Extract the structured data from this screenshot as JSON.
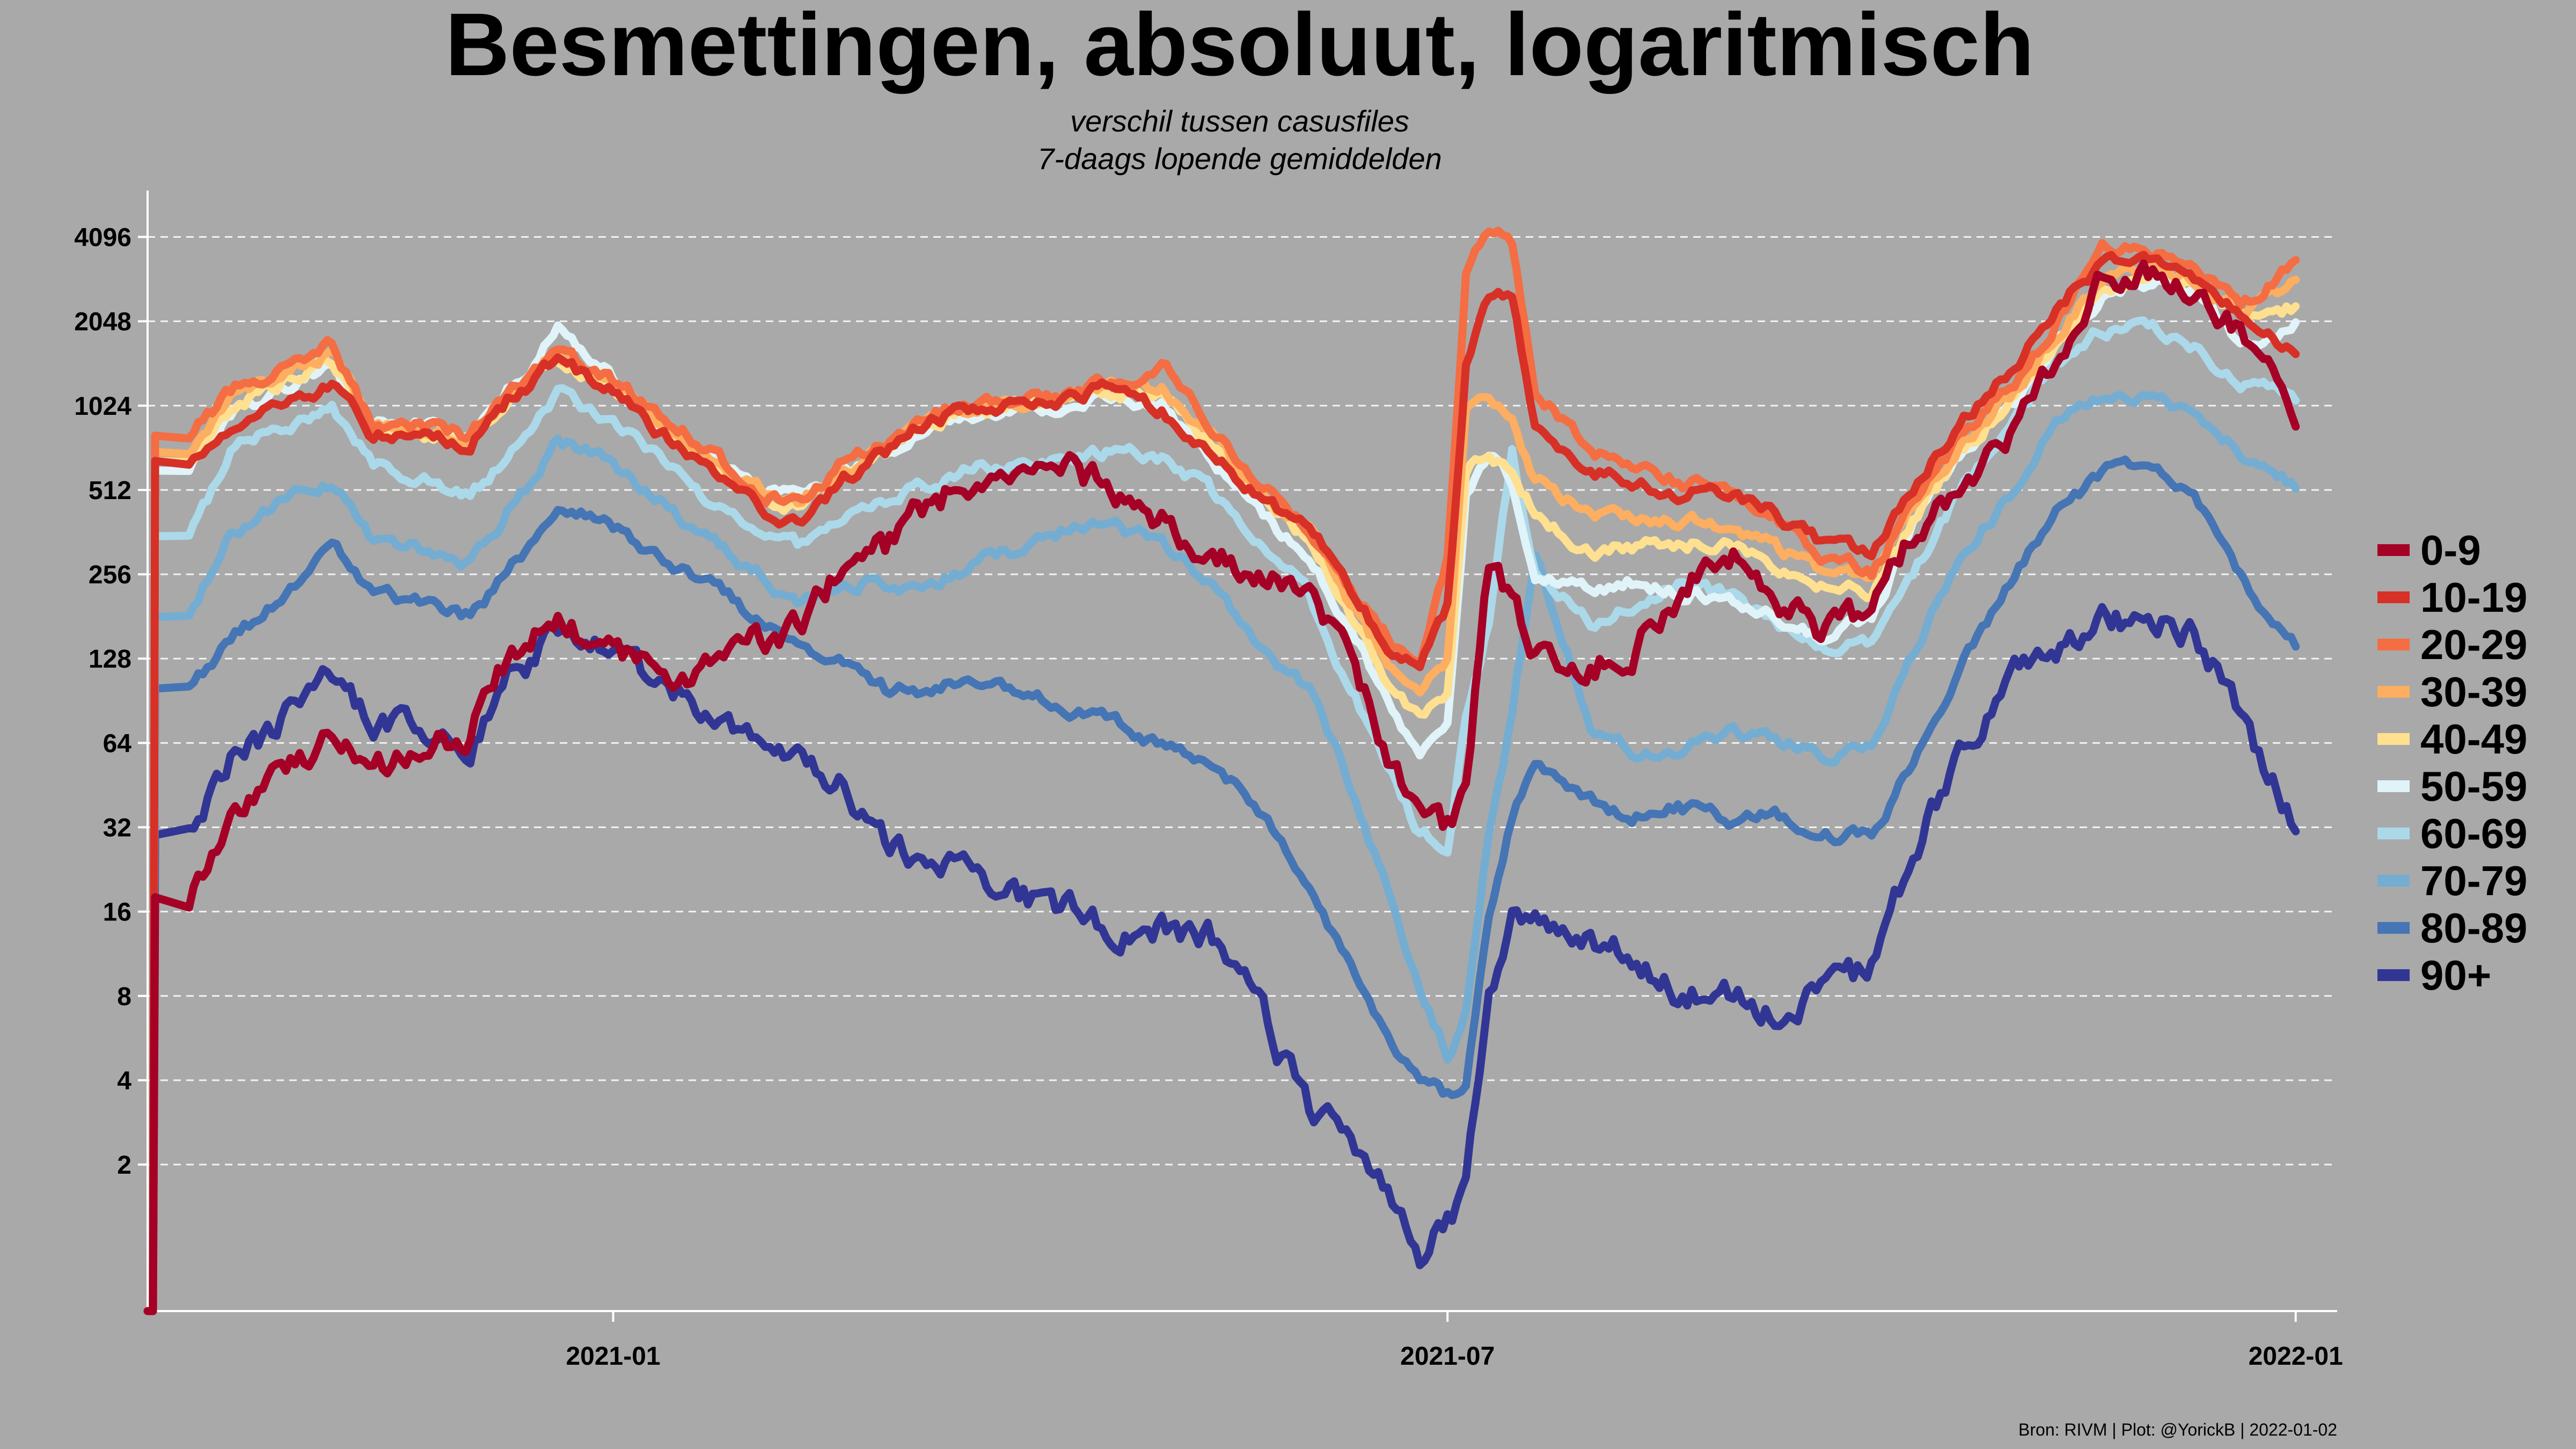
{
  "chart_data": {
    "type": "line",
    "title": "Besmettingen, absoluut, logaritmisch",
    "subtitle": [
      "verschil tussen casusfiles",
      "7-daags lopende gemiddelden"
    ],
    "caption": "Bron: RIVM | Plot: @YorickB  |  2022-01-02",
    "y_scale": "log2",
    "ylim": [
      0.6,
      6000
    ],
    "y_ticks": [
      2,
      4,
      8,
      16,
      32,
      64,
      128,
      256,
      512,
      1024,
      2048,
      4096
    ],
    "y_tick_labels": [
      "2",
      "4",
      "8",
      "16",
      "32",
      "64",
      "128",
      "256",
      "512",
      "1024",
      "2048",
      "4096"
    ],
    "xlim": [
      "2020-09-22",
      "2022-01-10"
    ],
    "x_ticks": [
      "2021-01-01",
      "2021-07-01",
      "2022-01-01"
    ],
    "x_tick_labels": [
      "2021-01",
      "2021-07",
      "2022-01"
    ],
    "grid": "horizontal-dashed",
    "legend_position": "right",
    "x_dates": [
      "2020-10-01",
      "2020-10-10",
      "2020-10-20",
      "2020-11-01",
      "2020-11-10",
      "2020-11-20",
      "2020-12-01",
      "2020-12-10",
      "2020-12-20",
      "2021-01-01",
      "2021-01-10",
      "2021-01-20",
      "2021-02-01",
      "2021-02-10",
      "2021-02-20",
      "2021-03-01",
      "2021-03-10",
      "2021-03-20",
      "2021-04-01",
      "2021-04-10",
      "2021-04-20",
      "2021-05-01",
      "2021-05-10",
      "2021-05-20",
      "2021-06-01",
      "2021-06-10",
      "2021-06-20",
      "2021-06-25",
      "2021-07-01",
      "2021-07-05",
      "2021-07-10",
      "2021-07-15",
      "2021-07-20",
      "2021-08-01",
      "2021-08-10",
      "2021-08-20",
      "2021-09-01",
      "2021-09-10",
      "2021-09-20",
      "2021-10-01",
      "2021-10-10",
      "2021-10-20",
      "2021-11-01",
      "2021-11-10",
      "2021-11-20",
      "2021-12-01",
      "2021-12-10",
      "2021-12-20",
      "2022-01-01"
    ],
    "series": [
      {
        "name": "0-9",
        "color": "#a50026",
        "values": [
          18,
          35,
          50,
          65,
          50,
          60,
          70,
          140,
          175,
          130,
          115,
          115,
          150,
          160,
          280,
          320,
          450,
          560,
          550,
          600,
          500,
          380,
          300,
          260,
          220,
          120,
          50,
          35,
          32,
          45,
          280,
          200,
          140,
          120,
          140,
          220,
          300,
          220,
          160,
          180,
          350,
          550,
          850,
          1600,
          2900,
          3100,
          2600,
          1800,
          950
        ]
      },
      {
        "name": "10-19",
        "color": "#d73027",
        "values": [
          650,
          850,
          1050,
          1200,
          800,
          800,
          750,
          1100,
          1500,
          1150,
          850,
          650,
          450,
          380,
          560,
          700,
          900,
          1000,
          1050,
          1100,
          1200,
          950,
          700,
          500,
          380,
          220,
          130,
          120,
          200,
          1400,
          2500,
          2500,
          900,
          600,
          560,
          500,
          500,
          420,
          330,
          300,
          500,
          900,
          1400,
          2300,
          3300,
          3500,
          3000,
          2100,
          1600
        ]
      },
      {
        "name": "20-29",
        "color": "#f46d43",
        "values": [
          800,
          1150,
          1350,
          1700,
          850,
          850,
          800,
          1200,
          1600,
          1250,
          1000,
          750,
          500,
          450,
          650,
          750,
          950,
          1050,
          1100,
          1150,
          1250,
          1400,
          900,
          550,
          380,
          220,
          140,
          130,
          300,
          3200,
          4400,
          4000,
          1200,
          700,
          650,
          550,
          500,
          420,
          300,
          260,
          460,
          800,
          1250,
          2000,
          3700,
          3600,
          3100,
          2300,
          3400
        ]
      },
      {
        "name": "30-39",
        "color": "#fdae61",
        "values": [
          700,
          1100,
          1300,
          1600,
          850,
          830,
          780,
          1150,
          1550,
          1200,
          920,
          700,
          520,
          460,
          600,
          720,
          900,
          1000,
          1050,
          1100,
          1200,
          1150,
          820,
          520,
          360,
          200,
          110,
          90,
          130,
          950,
          1100,
          900,
          550,
          420,
          420,
          400,
          380,
          320,
          260,
          240,
          420,
          750,
          1150,
          1800,
          2900,
          3300,
          2900,
          2200,
          2800
        ]
      },
      {
        "name": "40-49",
        "color": "#fee090",
        "values": [
          650,
          1000,
          1200,
          1500,
          850,
          810,
          760,
          1100,
          1500,
          1150,
          880,
          680,
          500,
          440,
          580,
          700,
          880,
          980,
          1030,
          1080,
          1150,
          1050,
          750,
          480,
          330,
          180,
          95,
          80,
          100,
          600,
          700,
          600,
          420,
          300,
          320,
          330,
          320,
          280,
          230,
          220,
          400,
          700,
          1100,
          1700,
          2700,
          3100,
          2800,
          2100,
          2300
        ]
      },
      {
        "name": "50-59",
        "color": "#e0f3f8",
        "values": [
          600,
          950,
          1150,
          1400,
          900,
          870,
          800,
          1200,
          1900,
          1300,
          900,
          700,
          520,
          480,
          600,
          700,
          850,
          950,
          1000,
          1050,
          1100,
          1000,
          700,
          440,
          300,
          160,
          80,
          60,
          80,
          500,
          700,
          550,
          260,
          230,
          240,
          220,
          210,
          180,
          150,
          180,
          380,
          700,
          1050,
          1700,
          2500,
          2900,
          2600,
          1700,
          2000
        ]
      },
      {
        "name": "60-69",
        "color": "#abd9e9",
        "values": [
          350,
          700,
          850,
          1000,
          650,
          560,
          500,
          700,
          1150,
          900,
          700,
          500,
          380,
          330,
          430,
          480,
          530,
          600,
          650,
          680,
          700,
          650,
          520,
          360,
          220,
          100,
          45,
          30,
          28,
          80,
          170,
          700,
          260,
          170,
          200,
          240,
          210,
          170,
          140,
          140,
          260,
          500,
          900,
          1500,
          1900,
          1900,
          1700,
          1200,
          1100
        ]
      },
      {
        "name": "70-79",
        "color": "#74add1",
        "values": [
          180,
          350,
          450,
          550,
          330,
          320,
          280,
          450,
          750,
          650,
          480,
          350,
          260,
          200,
          240,
          240,
          230,
          280,
          320,
          380,
          380,
          320,
          250,
          150,
          100,
          45,
          15,
          8,
          5,
          7,
          30,
          80,
          300,
          75,
          60,
          60,
          70,
          65,
          58,
          60,
          130,
          300,
          500,
          900,
          1100,
          1100,
          1000,
          700,
          530
        ]
      },
      {
        "name": "80-89",
        "color": "#4575b4",
        "values": [
          100,
          150,
          200,
          320,
          220,
          200,
          180,
          270,
          450,
          380,
          300,
          250,
          180,
          140,
          130,
          100,
          100,
          110,
          100,
          85,
          75,
          60,
          55,
          40,
          20,
          10,
          5,
          4,
          3.5,
          4,
          15,
          35,
          55,
          40,
          35,
          38,
          34,
          35,
          30,
          30,
          55,
          120,
          260,
          420,
          600,
          620,
          480,
          250,
          140
        ]
      },
      {
        "name": "90+",
        "color": "#313695",
        "values": [
          30,
          55,
          75,
          120,
          75,
          70,
          65,
          110,
          160,
          130,
          110,
          85,
          70,
          55,
          45,
          30,
          25,
          22,
          18,
          16,
          14,
          14,
          13,
          8,
          3,
          2.5,
          1.5,
          1,
          1.3,
          1.6,
          8,
          15,
          14,
          12,
          11,
          8,
          8,
          7,
          8,
          10,
          25,
          60,
          110,
          130,
          170,
          180,
          160,
          80,
          32
        ]
      }
    ]
  }
}
